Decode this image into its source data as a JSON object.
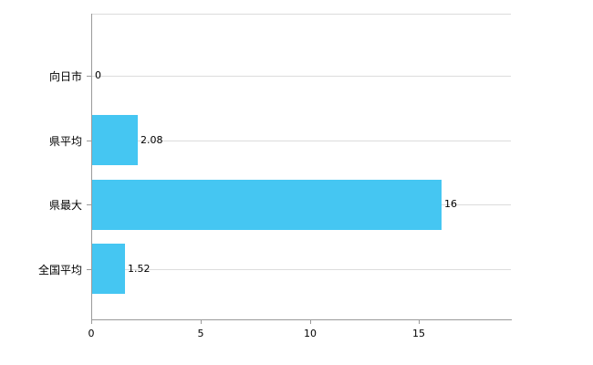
{
  "chart_data": {
    "type": "bar",
    "orientation": "horizontal",
    "categories": [
      "向日市",
      "県平均",
      "県最大",
      "全国平均"
    ],
    "values": [
      0,
      2.08,
      16,
      1.52
    ],
    "value_labels": [
      "0",
      "2.08",
      "16",
      "1.52"
    ],
    "title": "",
    "xlabel": "",
    "ylabel": "",
    "xlim": [
      0,
      19.2
    ],
    "xticks": [
      0,
      5,
      10,
      15
    ],
    "bar_color": "#45c6f2",
    "grid": true,
    "legend": false,
    "background": "#ffffff",
    "gridline_color": "#dcdcdc",
    "axis_color": "#9a9a9a",
    "text_color": "#000000"
  }
}
